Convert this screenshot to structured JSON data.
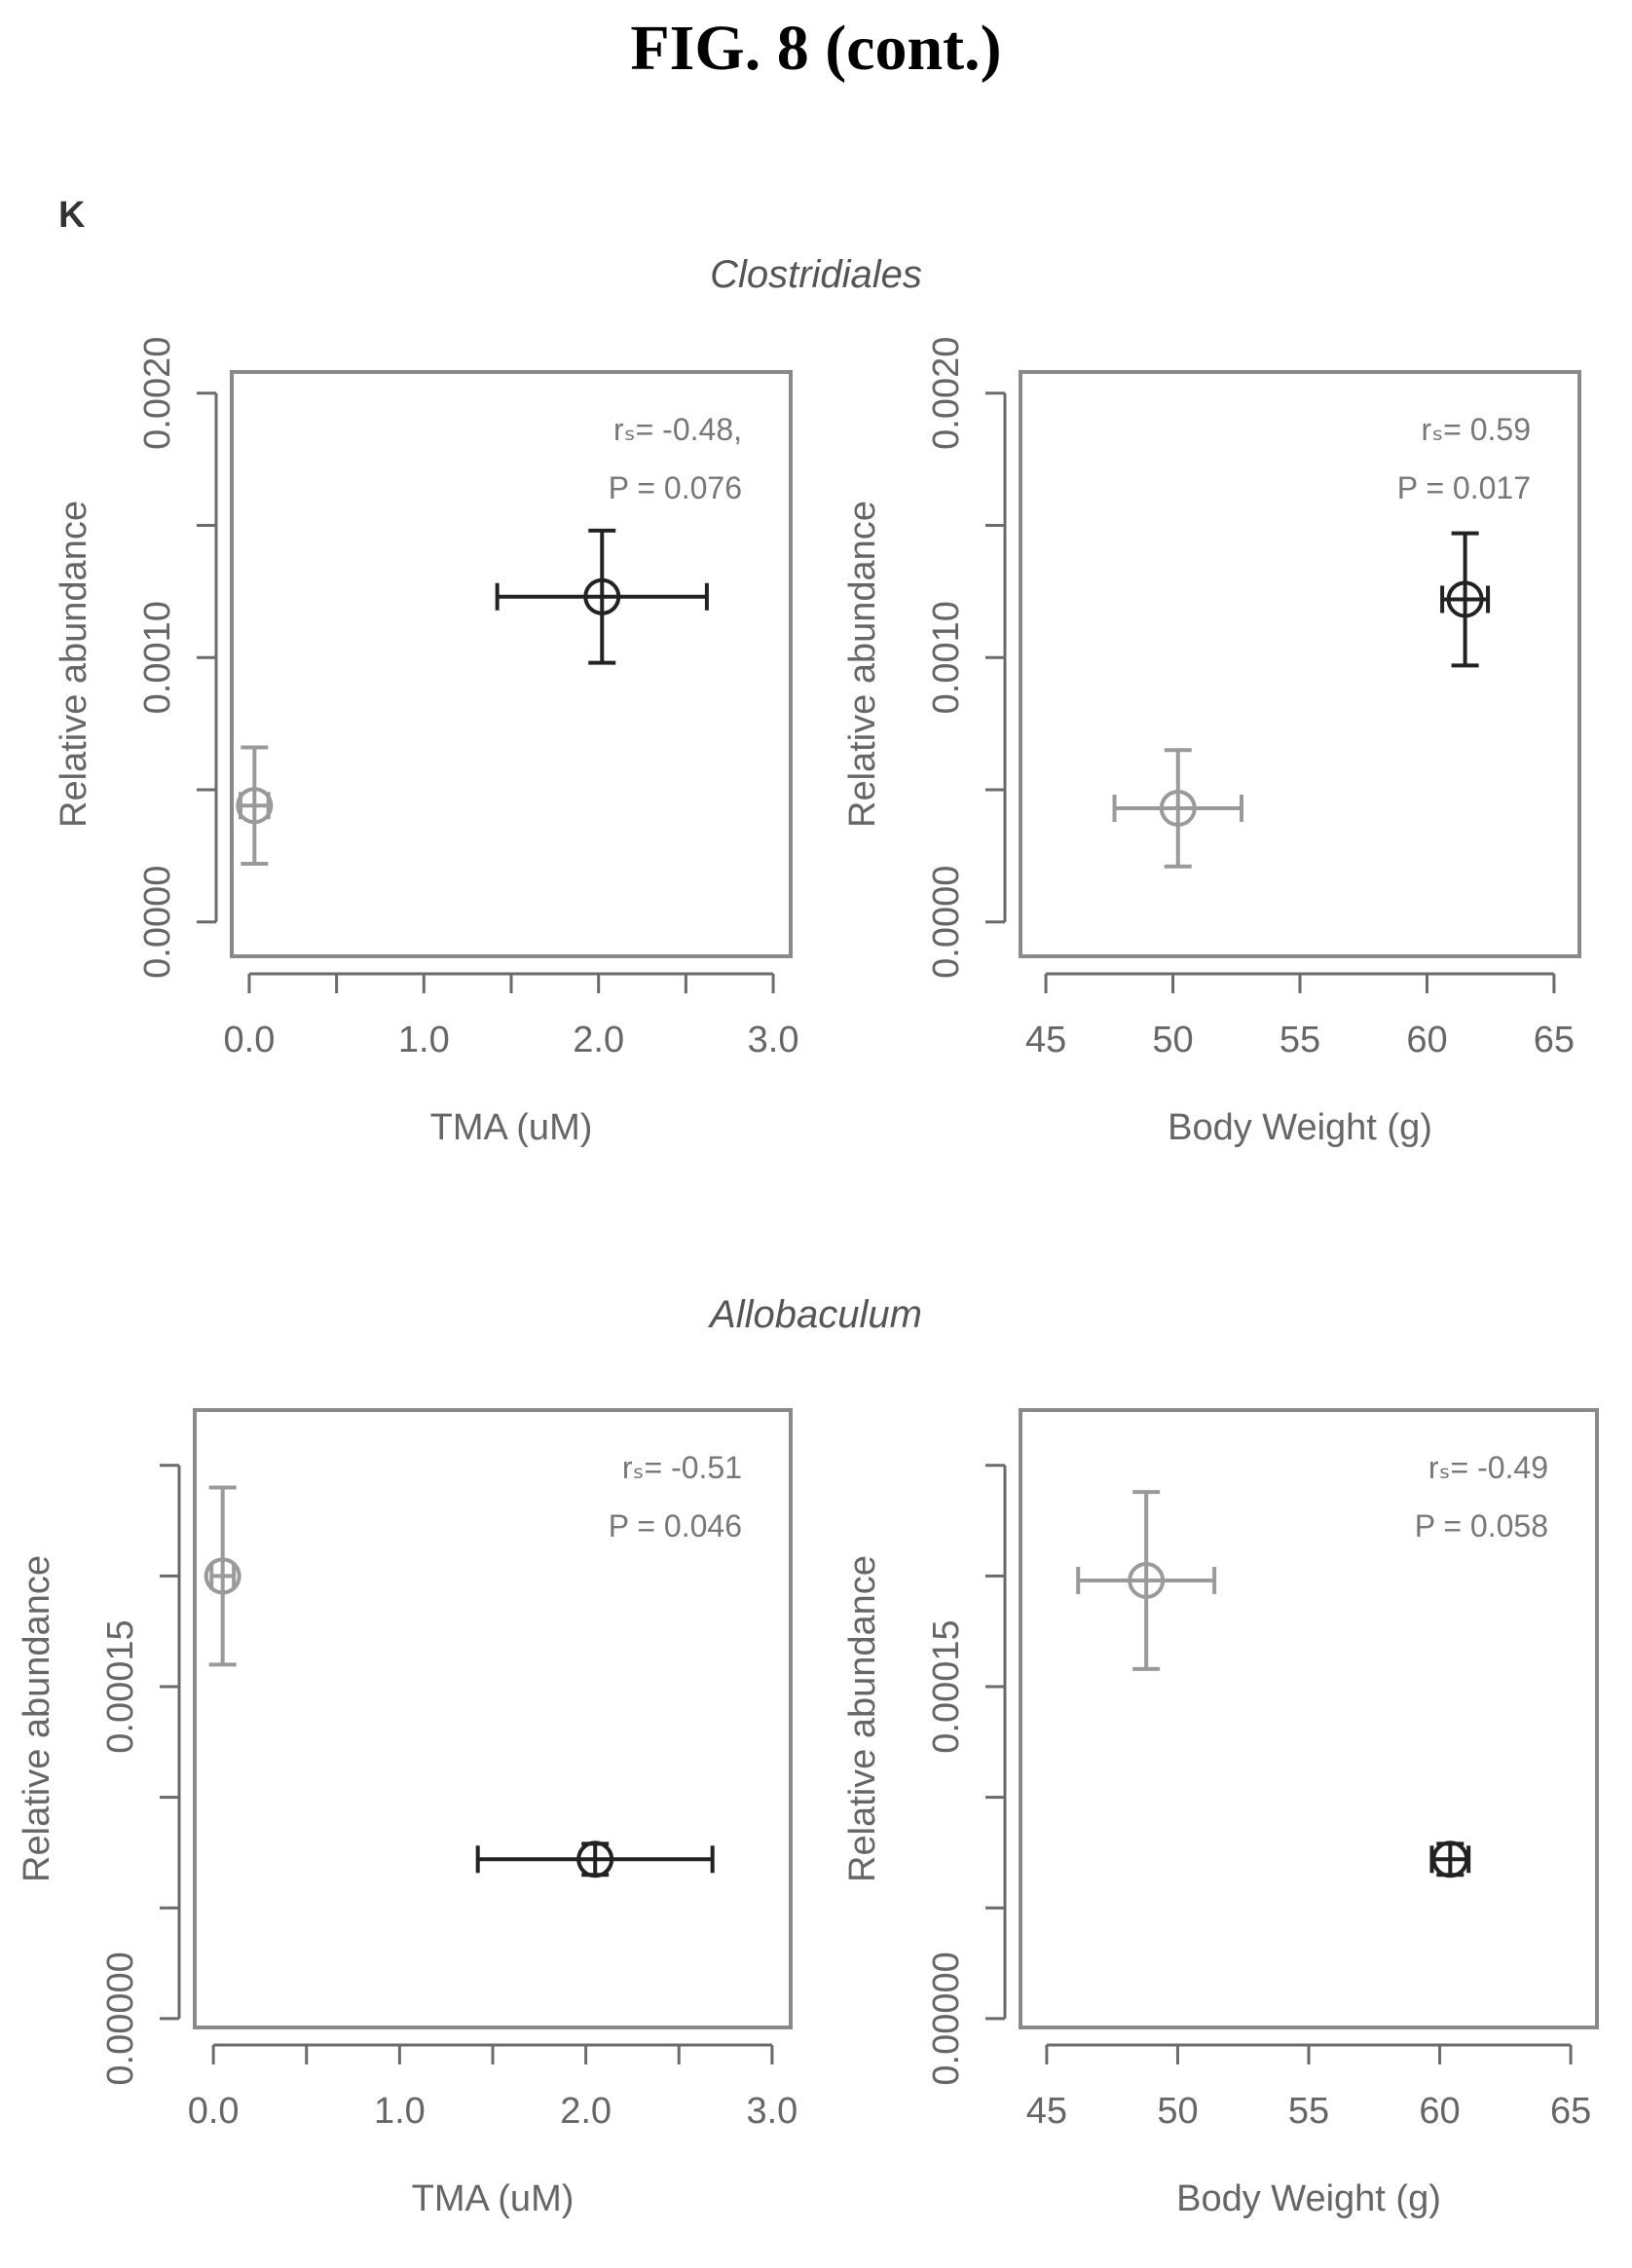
{
  "figure": {
    "title": "FIG. 8 (cont.)",
    "panel_label": "K",
    "groups": [
      "Clostridiales",
      "Allobaculum"
    ]
  },
  "chart_data": [
    {
      "type": "scatter",
      "group": "Clostridiales",
      "xlabel": "TMA (uM)",
      "ylabel": "Relative abundance",
      "xlim": [
        -0.1,
        3.1
      ],
      "ylim": [
        -0.00013,
        0.00208
      ],
      "xticks": [
        0,
        0.5,
        1,
        1.5,
        2,
        2.5,
        3
      ],
      "xticklabels": [
        "0.0",
        "",
        "1.0",
        "",
        "2.0",
        "",
        "3.0"
      ],
      "yticks": [
        0,
        0.0005,
        0.001,
        0.0015,
        0.002
      ],
      "yticklabels": [
        "0.0000",
        "",
        "0.0010",
        "",
        "0.0020"
      ],
      "annotation": [
        "rₛ= -0.48,",
        "P = 0.076"
      ],
      "points": [
        {
          "x": 0.03,
          "y": 0.00044,
          "xerr": 0.08,
          "yerr": 0.00022,
          "color": "#9a9a9a"
        },
        {
          "x": 2.02,
          "y": 0.00123,
          "xerr": 0.6,
          "yerr": 0.00025,
          "color": "#222222"
        }
      ]
    },
    {
      "type": "scatter",
      "group": "Clostridiales",
      "xlabel": "Body Weight (g)",
      "ylabel": "Relative abundance",
      "xlim": [
        44,
        66
      ],
      "ylim": [
        -0.00013,
        0.00208
      ],
      "xticks": [
        45,
        50,
        55,
        60,
        65
      ],
      "xticklabels": [
        "45",
        "50",
        "55",
        "60",
        "65"
      ],
      "yticks": [
        0,
        0.0005,
        0.001,
        0.0015,
        0.002
      ],
      "yticklabels": [
        "0.0000",
        "",
        "0.0010",
        "",
        "0.0020"
      ],
      "annotation": [
        "rₛ= 0.59",
        "P = 0.017"
      ],
      "points": [
        {
          "x": 50.2,
          "y": 0.00043,
          "xerr": 2.5,
          "yerr": 0.00022,
          "color": "#9a9a9a"
        },
        {
          "x": 61.5,
          "y": 0.00122,
          "xerr": 0.9,
          "yerr": 0.00025,
          "color": "#222222"
        }
      ]
    },
    {
      "type": "scatter",
      "group": "Allobaculum",
      "xlabel": "TMA (uM)",
      "ylabel": "Relative abundance",
      "xlim": [
        -0.1,
        3.1
      ],
      "ylim": [
        -4e-06,
        0.000275
      ],
      "xticks": [
        0,
        0.5,
        1,
        1.5,
        2,
        2.5,
        3
      ],
      "xticklabels": [
        "0.0",
        "",
        "1.0",
        "",
        "2.0",
        "",
        "3.0"
      ],
      "yticks": [
        0,
        5e-05,
        0.0001,
        0.00015,
        0.0002,
        0.00025
      ],
      "yticklabels": [
        "0.00000",
        "",
        "",
        "0.00015",
        "",
        ""
      ],
      "annotation": [
        "rₛ= -0.51",
        "P = 0.046"
      ],
      "points": [
        {
          "x": 0.05,
          "y": 0.0002,
          "xerr": 0.06,
          "yerr": 4e-05,
          "color": "#9a9a9a"
        },
        {
          "x": 2.05,
          "y": 7.2e-05,
          "xerr": 0.63,
          "yerr": 7e-06,
          "color": "#222222"
        }
      ]
    },
    {
      "type": "scatter",
      "group": "Allobaculum",
      "xlabel": "Body Weight (g)",
      "ylabel": "Relative abundance",
      "xlim": [
        44,
        66
      ],
      "ylim": [
        -4e-06,
        0.000275
      ],
      "xticks": [
        45,
        50,
        55,
        60,
        65
      ],
      "xticklabels": [
        "45",
        "50",
        "55",
        "60",
        "65"
      ],
      "yticks": [
        0,
        5e-05,
        0.0001,
        0.00015,
        0.0002,
        0.00025
      ],
      "yticklabels": [
        "0.00000",
        "",
        "",
        "0.00015",
        "",
        ""
      ],
      "annotation": [
        "rₛ= -0.49",
        "P = 0.058"
      ],
      "points": [
        {
          "x": 48.8,
          "y": 0.000198,
          "xerr": 2.6,
          "yerr": 4e-05,
          "color": "#9a9a9a"
        },
        {
          "x": 60.4,
          "y": 7.2e-05,
          "xerr": 0.7,
          "yerr": 7e-06,
          "color": "#222222"
        }
      ]
    }
  ]
}
